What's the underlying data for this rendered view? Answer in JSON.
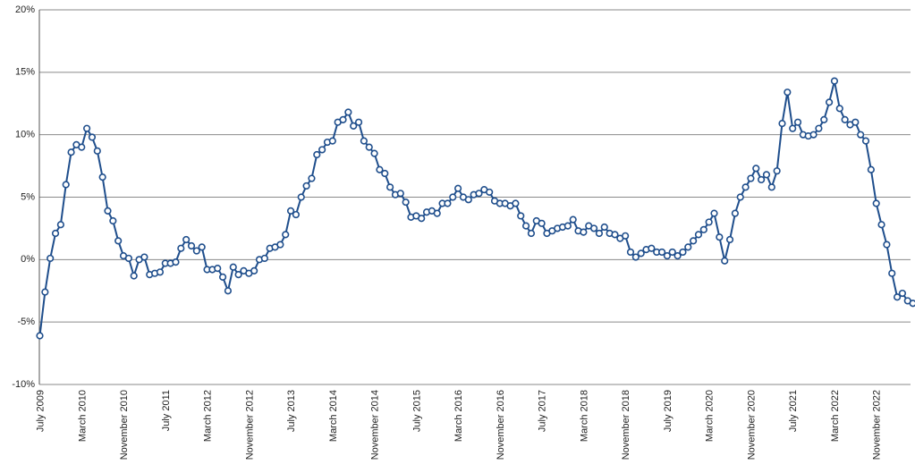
{
  "chart_data": {
    "type": "line",
    "title": "",
    "xlabel": "",
    "ylabel": "",
    "ylim": [
      -10,
      20
    ],
    "yticks": [
      -10,
      -5,
      0,
      5,
      10,
      15,
      20
    ],
    "ytick_labels": [
      "-10%",
      "-5%",
      "0%",
      "5%",
      "10%",
      "15%",
      "20%"
    ],
    "grid": true,
    "legend": "none",
    "start_month": "2009-07",
    "x_tick_labels": [
      "July 2009",
      "March 2010",
      "November 2010",
      "July 2011",
      "March 2012",
      "November 2012",
      "July 2013",
      "March 2014",
      "November 2014",
      "July 2015",
      "March 2016",
      "November 2016",
      "July 2017",
      "March 2018",
      "November 2018",
      "July 2019",
      "March 2020",
      "November 2020",
      "July 2021",
      "March 2022",
      "November 2022"
    ],
    "colors": {
      "series": "#1f4e8c",
      "grid": "#8a8a8a"
    },
    "series": [
      {
        "name": "",
        "values": [
          -6.1,
          -2.6,
          0.1,
          2.1,
          2.8,
          6.0,
          8.6,
          9.2,
          9.0,
          10.5,
          9.8,
          8.7,
          6.6,
          3.9,
          3.1,
          1.5,
          0.3,
          0.1,
          -1.3,
          0.0,
          0.2,
          -1.2,
          -1.1,
          -1.0,
          -0.3,
          -0.3,
          -0.2,
          0.9,
          1.6,
          1.1,
          0.7,
          1.0,
          -0.8,
          -0.8,
          -0.7,
          -1.4,
          -2.5,
          -0.6,
          -1.2,
          -0.9,
          -1.1,
          -0.9,
          0.0,
          0.1,
          0.9,
          1.0,
          1.2,
          2.0,
          3.9,
          3.6,
          5.0,
          5.9,
          6.5,
          8.4,
          8.8,
          9.4,
          9.5,
          11.0,
          11.2,
          11.8,
          10.7,
          11.0,
          9.5,
          9.0,
          8.5,
          7.2,
          6.9,
          5.8,
          5.2,
          5.3,
          4.6,
          3.4,
          3.5,
          3.3,
          3.8,
          3.9,
          3.7,
          4.5,
          4.5,
          5.0,
          5.7,
          5.0,
          4.8,
          5.2,
          5.3,
          5.6,
          5.4,
          4.7,
          4.5,
          4.5,
          4.3,
          4.5,
          3.5,
          2.7,
          2.1,
          3.1,
          2.9,
          2.1,
          2.3,
          2.5,
          2.6,
          2.7,
          3.2,
          2.3,
          2.2,
          2.7,
          2.5,
          2.1,
          2.6,
          2.1,
          2.0,
          1.7,
          1.9,
          0.6,
          0.2,
          0.5,
          0.8,
          0.9,
          0.6,
          0.6,
          0.3,
          0.6,
          0.3,
          0.6,
          1.0,
          1.5,
          2.0,
          2.4,
          3.0,
          3.7,
          1.8,
          -0.1,
          1.6,
          3.7,
          5.0,
          5.8,
          6.5,
          7.3,
          6.4,
          6.8,
          5.8,
          7.1,
          10.9,
          13.4,
          10.5,
          11.0,
          10.0,
          9.9,
          10.0,
          10.5,
          11.2,
          12.6,
          14.3,
          12.1,
          11.2,
          10.8,
          11.0,
          10.0,
          9.5,
          7.2,
          4.5,
          2.8,
          1.2,
          -1.1,
          -3.0,
          -2.7,
          -3.3,
          -3.5
        ]
      }
    ]
  }
}
